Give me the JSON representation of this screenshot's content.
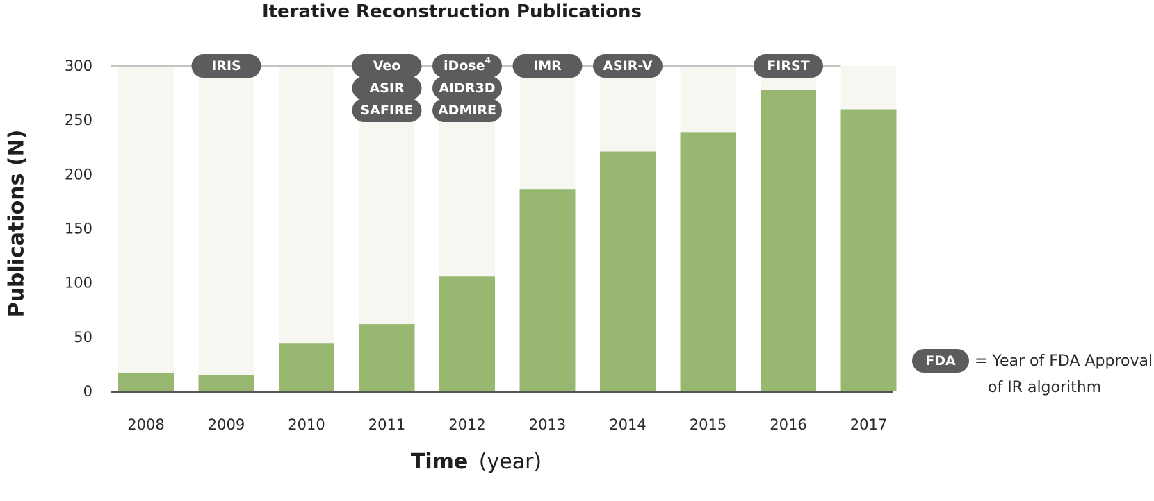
{
  "chart_data": {
    "type": "bar",
    "title": "Iterative Reconstruction Publications",
    "xlabel": "Time",
    "xlabel_unit": "(year)",
    "ylabel": "Publications (N)",
    "ylim": [
      0,
      300
    ],
    "yticks": [
      0,
      50,
      100,
      150,
      200,
      250,
      300
    ],
    "categories": [
      "2008",
      "2009",
      "2010",
      "2011",
      "2012",
      "2013",
      "2014",
      "2015",
      "2016",
      "2017"
    ],
    "values": [
      17,
      15,
      44,
      62,
      106,
      186,
      221,
      239,
      278,
      260
    ],
    "annotations": [
      {
        "year": "2009",
        "labels": [
          {
            "text": "IRIS"
          }
        ]
      },
      {
        "year": "2011",
        "labels": [
          {
            "text": "Veo"
          },
          {
            "text": "ASIR"
          },
          {
            "text": "SAFIRE"
          }
        ]
      },
      {
        "year": "2012",
        "labels": [
          {
            "text": "iDose",
            "sup": "4"
          },
          {
            "text": "AIDR3D"
          },
          {
            "text": "ADMIRE"
          }
        ]
      },
      {
        "year": "2013",
        "labels": [
          {
            "text": "IMR"
          }
        ]
      },
      {
        "year": "2014",
        "labels": [
          {
            "text": "ASIR-V"
          }
        ]
      },
      {
        "year": "2016",
        "labels": [
          {
            "text": "FIRST"
          }
        ]
      }
    ],
    "legend": {
      "pill": "FDA",
      "line1": "= Year of FDA Approval",
      "line2": "of IR algorithm",
      "placement": "right"
    },
    "colors": {
      "bar": "#98b872",
      "bar_background": "#f7f7f2",
      "pill": "#5a5c5e",
      "axis": "#555555",
      "reference_line": "#c4c4c4"
    }
  }
}
